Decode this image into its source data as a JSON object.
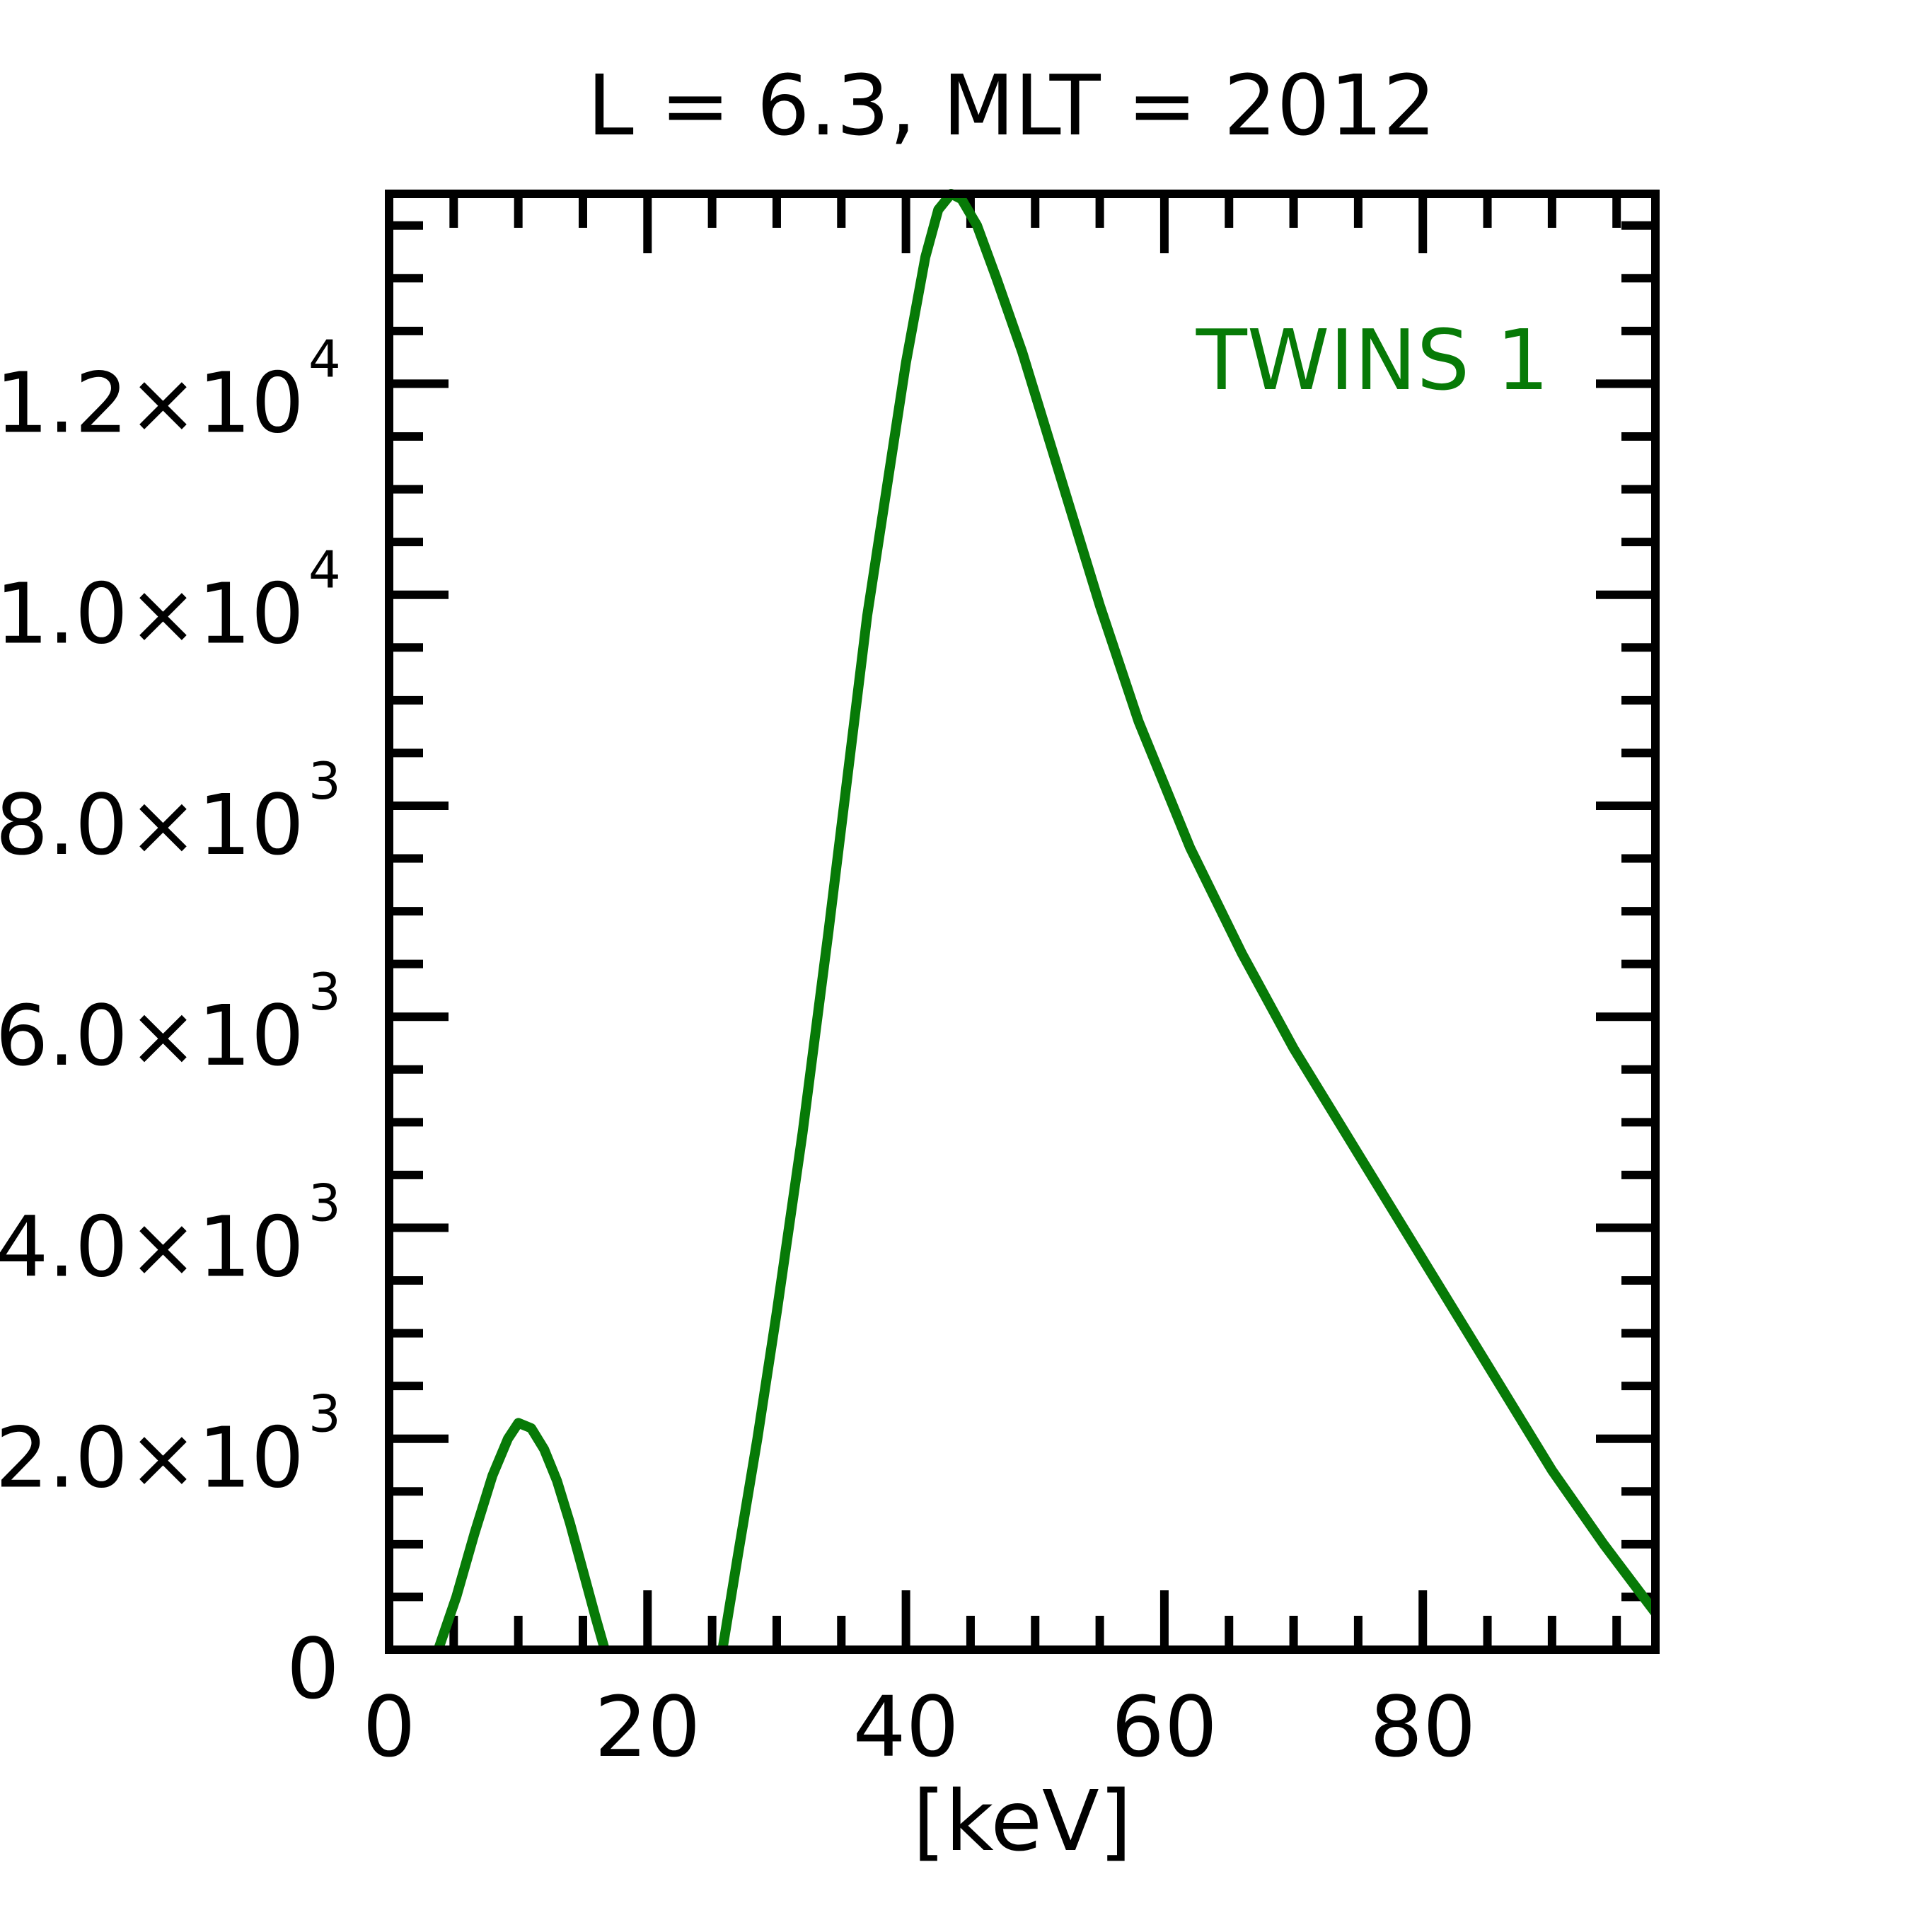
{
  "chart_data": {
    "type": "line",
    "title": "L =  6.3, MLT = 2012",
    "xlabel": "[keV]",
    "ylabel": "",
    "xlim": [
      0,
      98
    ],
    "ylim": [
      0,
      13800
    ],
    "x_ticks": [
      {
        "value": 0,
        "label": "0"
      },
      {
        "value": 20,
        "label": "20"
      },
      {
        "value": 40,
        "label": "40"
      },
      {
        "value": 60,
        "label": "60"
      },
      {
        "value": 80,
        "label": "80"
      }
    ],
    "y_ticks": [
      {
        "value": 0,
        "mantissa": "0",
        "exponent": ""
      },
      {
        "value": 2000,
        "mantissa": "2.0×10",
        "exponent": "3"
      },
      {
        "value": 4000,
        "mantissa": "4.0×10",
        "exponent": "3"
      },
      {
        "value": 6000,
        "mantissa": "6.0×10",
        "exponent": "3"
      },
      {
        "value": 8000,
        "mantissa": "8.0×10",
        "exponent": "3"
      },
      {
        "value": 10000,
        "mantissa": "1.0×10",
        "exponent": "4"
      },
      {
        "value": 12000,
        "mantissa": "1.2×10",
        "exponent": "4"
      }
    ],
    "x_minor_step": 5,
    "y_minor_step": 500,
    "grid": false,
    "series": [
      {
        "name": "TWINS 1",
        "color": "#077a07",
        "segments": [
          [
            [
              3.8,
              0
            ],
            [
              5.2,
              500
            ],
            [
              6.6,
              1100
            ],
            [
              8.0,
              1650
            ],
            [
              9.2,
              2000
            ],
            [
              10.0,
              2150
            ],
            [
              11.0,
              2100
            ],
            [
              12.0,
              1900
            ],
            [
              13.0,
              1600
            ],
            [
              14.0,
              1200
            ],
            [
              15.0,
              750
            ],
            [
              16.0,
              300
            ],
            [
              16.7,
              0
            ]
          ],
          [
            [
              25.8,
              0
            ],
            [
              27.0,
              900
            ],
            [
              28.5,
              2000
            ],
            [
              30.0,
              3200
            ],
            [
              32.0,
              4900
            ],
            [
              34.0,
              6800
            ],
            [
              35.5,
              8300
            ],
            [
              37.0,
              9800
            ],
            [
              38.5,
              11000
            ],
            [
              40.0,
              12200
            ],
            [
              41.5,
              13200
            ],
            [
              42.5,
              13650
            ],
            [
              43.5,
              13800
            ],
            [
              44.3,
              13750
            ],
            [
              45.5,
              13500
            ],
            [
              47.0,
              13000
            ],
            [
              49.0,
              12300
            ],
            [
              52.0,
              11100
            ],
            [
              55.0,
              9900
            ],
            [
              58.0,
              8800
            ],
            [
              62.0,
              7600
            ],
            [
              66.0,
              6600
            ],
            [
              70.0,
              5700
            ],
            [
              75.0,
              4700
            ],
            [
              80.0,
              3700
            ],
            [
              85.0,
              2700
            ],
            [
              90.0,
              1700
            ],
            [
              94.0,
              1000
            ],
            [
              98.0,
              350
            ]
          ]
        ]
      }
    ],
    "legend": {
      "text": "TWINS 1",
      "placement": "top-right"
    }
  }
}
